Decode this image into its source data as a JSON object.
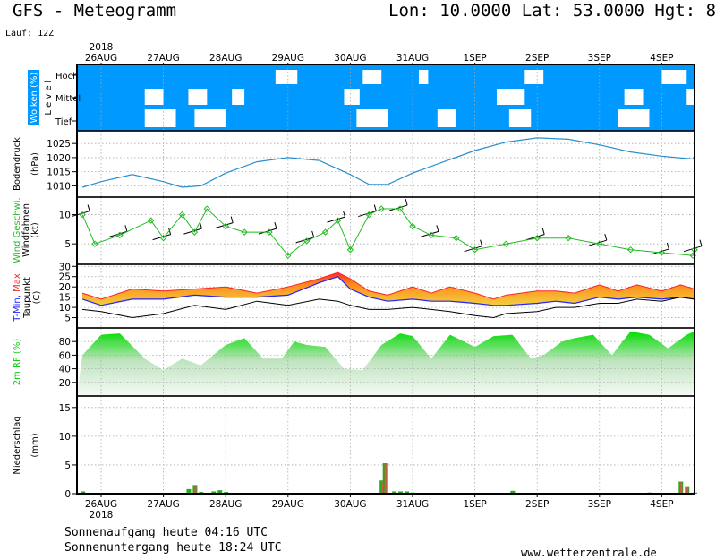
{
  "header": {
    "title": "GFS - Meteogramm",
    "location": "Lon: 10.0000 Lat: 53.0000 Hgt: 8",
    "run": "Lauf: 12Z"
  },
  "axis": {
    "year": "2018",
    "days": [
      "26AUG",
      "27AUG",
      "28AUG",
      "29AUG",
      "30AUG",
      "31AUG",
      "1SEP",
      "2SEP",
      "3SEP",
      "4SEP"
    ]
  },
  "footer": {
    "sunrise": "Sonnenaufgang heute 04:16 UTC",
    "sunset": "Sonnenuntergang heute 18:24 UTC",
    "site": "www.wetterzentrale.de"
  },
  "colors": {
    "cloud_bg": "#0099ff",
    "pressure": "#2a8fd0",
    "wind": "#22bb22",
    "tmin": "#2222ff",
    "tmax": "#ff2222",
    "humidity": "#11cc11",
    "precip_bar": "#22aa22",
    "precip_conv": "#ff4444"
  },
  "chart_data": [
    {
      "type": "heatmap",
      "panel": "clouds",
      "ylabel": "Wolken (%)",
      "ylabel2": "L e v e l",
      "levels": [
        "Hoch",
        "Mittel",
        "Tief"
      ],
      "cloud_gaps": [
        {
          "level": "Hoch",
          "from": 2.8,
          "to": 3.15
        },
        {
          "level": "Hoch",
          "from": 4.2,
          "to": 4.5
        },
        {
          "level": "Hoch",
          "from": 5.1,
          "to": 5.25
        },
        {
          "level": "Hoch",
          "from": 6.8,
          "to": 7.1
        },
        {
          "level": "Hoch",
          "from": 9.0,
          "to": 9.4
        },
        {
          "level": "Hoch",
          "from": 9.55,
          "to": 9.7
        },
        {
          "level": "Mittel",
          "from": 0.7,
          "to": 1.0
        },
        {
          "level": "Mittel",
          "from": 1.4,
          "to": 1.7
        },
        {
          "level": "Mittel",
          "from": 2.1,
          "to": 2.3
        },
        {
          "level": "Mittel",
          "from": 3.9,
          "to": 4.15
        },
        {
          "level": "Mittel",
          "from": 6.35,
          "to": 6.8
        },
        {
          "level": "Mittel",
          "from": 8.4,
          "to": 8.7
        },
        {
          "level": "Mittel",
          "from": 9.4,
          "to": 9.6
        },
        {
          "level": "Tief",
          "from": 0.7,
          "to": 1.2
        },
        {
          "level": "Tief",
          "from": 1.5,
          "to": 2.0
        },
        {
          "level": "Tief",
          "from": 4.1,
          "to": 4.6
        },
        {
          "level": "Tief",
          "from": 5.4,
          "to": 5.7
        },
        {
          "level": "Tief",
          "from": 6.55,
          "to": 6.9
        },
        {
          "level": "Tief",
          "from": 8.3,
          "to": 8.8
        },
        {
          "level": "Tief",
          "from": 9.6,
          "to": 9.75
        }
      ]
    },
    {
      "type": "line",
      "panel": "pressure",
      "ylabel": "Bodendruck",
      "unit": "(hPa)",
      "yticks": [
        1010,
        1015,
        1020,
        1025
      ],
      "ylim": [
        1006,
        1029.5
      ],
      "x": [
        -0.3,
        0.0,
        0.5,
        1.0,
        1.3,
        1.6,
        2.0,
        2.5,
        3.0,
        3.5,
        4.0,
        4.3,
        4.6,
        5.0,
        5.5,
        6.0,
        6.5,
        7.0,
        7.5,
        8.0,
        8.5,
        9.0,
        9.5,
        10.0,
        10.3
      ],
      "values": [
        1009.5,
        1011.5,
        1014,
        1011.5,
        1009.5,
        1010,
        1014.5,
        1018.5,
        1020,
        1019,
        1014,
        1010.5,
        1010.5,
        1014.5,
        1018.5,
        1022.5,
        1025.5,
        1027,
        1026.5,
        1024.5,
        1022,
        1020.5,
        1019.5,
        1020.5,
        1020
      ]
    },
    {
      "type": "line",
      "panel": "wind",
      "ylabel": "Wind Geschwi.",
      "ylabel2": "Windfahnen",
      "unit": "(kt)",
      "yticks": [
        5,
        10
      ],
      "ylim": [
        1.5,
        13
      ],
      "x": [
        -0.3,
        -0.1,
        0.3,
        0.8,
        1.0,
        1.3,
        1.5,
        1.7,
        2.0,
        2.3,
        2.7,
        3.0,
        3.3,
        3.6,
        3.8,
        4.0,
        4.3,
        4.5,
        4.8,
        5.0,
        5.3,
        5.7,
        6.0,
        6.5,
        7.0,
        7.5,
        8.0,
        8.5,
        9.0,
        9.5,
        10.0,
        10.3
      ],
      "values": [
        10,
        5,
        6.5,
        9,
        6,
        10,
        7,
        11,
        8,
        7,
        7,
        3,
        5.5,
        7,
        9,
        4,
        10,
        11,
        11,
        8,
        6.5,
        6,
        4,
        5,
        6,
        6,
        5,
        4,
        3.5,
        3,
        4,
        4
      ]
    },
    {
      "type": "area",
      "panel": "temperature",
      "ylabel": "T-Min, Max",
      "ylabel2": "Taupunkt",
      "unit": "(C)",
      "yticks": [
        5,
        10,
        15,
        20,
        25,
        30
      ],
      "ylim": [
        0,
        31
      ],
      "x": [
        -0.3,
        0.0,
        0.5,
        1.0,
        1.5,
        2.0,
        2.5,
        3.0,
        3.5,
        3.8,
        4.0,
        4.3,
        4.6,
        5.0,
        5.3,
        5.6,
        6.0,
        6.3,
        6.5,
        7.0,
        7.3,
        7.6,
        8.0,
        8.3,
        8.6,
        9.0,
        9.3,
        9.6,
        10.0,
        10.3
      ],
      "series": [
        {
          "name": "T-Min",
          "values": [
            14,
            11,
            14,
            14,
            16,
            15,
            15,
            16,
            22,
            25,
            19,
            15,
            13,
            14,
            13,
            13,
            12,
            11,
            11,
            12,
            13,
            12,
            15,
            14,
            15,
            14,
            15,
            14,
            15,
            16
          ]
        },
        {
          "name": "T-Max",
          "values": [
            17,
            14,
            19,
            18,
            19,
            20,
            17,
            20,
            24,
            27,
            24,
            18,
            16,
            20,
            17,
            20,
            17,
            14,
            16,
            18,
            18,
            17,
            21,
            18,
            21,
            18,
            21,
            19,
            20,
            20
          ]
        },
        {
          "name": "Taupunkt",
          "values": [
            9,
            8,
            5,
            7,
            11,
            9,
            13,
            11,
            14,
            13,
            11,
            9,
            9,
            10,
            9,
            8,
            6,
            5,
            7,
            8,
            10,
            10,
            12,
            12,
            14,
            13,
            15,
            14,
            13,
            15
          ]
        }
      ]
    },
    {
      "type": "area",
      "panel": "humidity",
      "ylabel": "2m RF (%)",
      "yticks": [
        20,
        40,
        60,
        80
      ],
      "ylim": [
        0,
        100
      ],
      "x": [
        -0.3,
        0.0,
        0.3,
        0.7,
        1.0,
        1.3,
        1.6,
        2.0,
        2.3,
        2.6,
        2.9,
        3.1,
        3.3,
        3.6,
        3.9,
        4.2,
        4.5,
        4.8,
        5.0,
        5.3,
        5.6,
        6.0,
        6.3,
        6.6,
        6.9,
        7.1,
        7.4,
        7.6,
        7.9,
        8.2,
        8.5,
        8.8,
        9.1,
        9.4,
        9.7,
        10.0,
        10.3
      ],
      "values": [
        60,
        90,
        92,
        55,
        38,
        55,
        45,
        75,
        85,
        55,
        55,
        80,
        75,
        72,
        40,
        38,
        75,
        92,
        88,
        55,
        90,
        72,
        88,
        90,
        55,
        60,
        80,
        85,
        90,
        60,
        95,
        90,
        70,
        90,
        95,
        95,
        80
      ]
    },
    {
      "type": "bar",
      "panel": "precipitation",
      "ylabel": "Niederschlag",
      "unit": "(mm)",
      "yticks": [
        0,
        5,
        10,
        15
      ],
      "ylim": [
        0,
        17
      ],
      "x": [
        -0.3,
        1.4,
        1.5,
        1.6,
        1.8,
        1.9,
        2.0,
        3.0,
        4.5,
        4.55,
        4.7,
        4.8,
        4.9,
        5.0,
        5.1,
        5.4,
        6.0,
        6.6,
        8.8,
        9.3,
        9.4,
        9.7,
        9.8
      ],
      "values": [
        0.4,
        0.8,
        1.5,
        0.3,
        0.4,
        0.6,
        0.3,
        0.1,
        2.3,
        5.3,
        0.4,
        0.4,
        0.4,
        0.2,
        0.1,
        0.1,
        0.1,
        0.5,
        0.2,
        2.1,
        1.3,
        0.2,
        0.1
      ]
    }
  ]
}
